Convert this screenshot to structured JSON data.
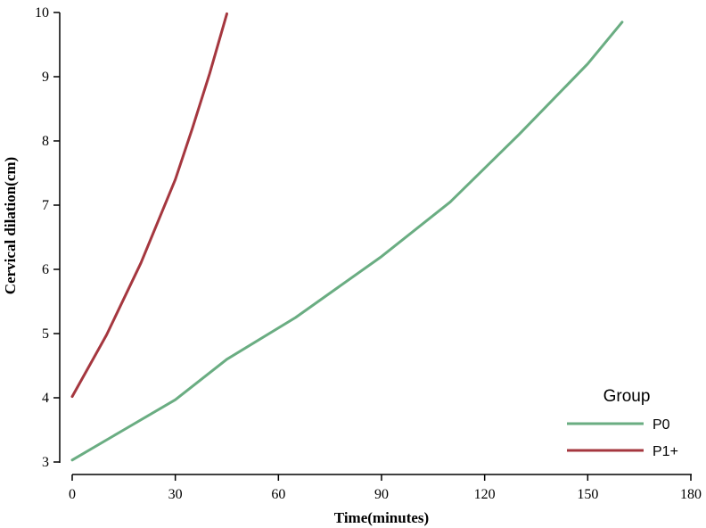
{
  "chart_data": {
    "type": "line",
    "xlabel": "Time(minutes)",
    "ylabel": "Cervical dilation(cm)",
    "xlim": [
      0,
      180
    ],
    "ylim": [
      3,
      10
    ],
    "xticks": [
      0,
      30,
      60,
      90,
      120,
      150,
      180
    ],
    "yticks": [
      3,
      4,
      5,
      6,
      7,
      8,
      9,
      10
    ],
    "grid": false,
    "legend": {
      "title": "Group",
      "placement": "bottom-right"
    },
    "series": [
      {
        "name": "P0",
        "color": "#6aad82",
        "points": [
          [
            0,
            3.03
          ],
          [
            15,
            3.5
          ],
          [
            30,
            3.97
          ],
          [
            45,
            4.6
          ],
          [
            65,
            5.25
          ],
          [
            90,
            6.2
          ],
          [
            110,
            7.05
          ],
          [
            130,
            8.1
          ],
          [
            150,
            9.2
          ],
          [
            160,
            9.85
          ]
        ]
      },
      {
        "name": "P1+",
        "color": "#a5373f",
        "points": [
          [
            0,
            4.02
          ],
          [
            10,
            4.98
          ],
          [
            20,
            6.1
          ],
          [
            30,
            7.4
          ],
          [
            35,
            8.2
          ],
          [
            40,
            9.05
          ],
          [
            45,
            9.98
          ]
        ]
      }
    ]
  }
}
